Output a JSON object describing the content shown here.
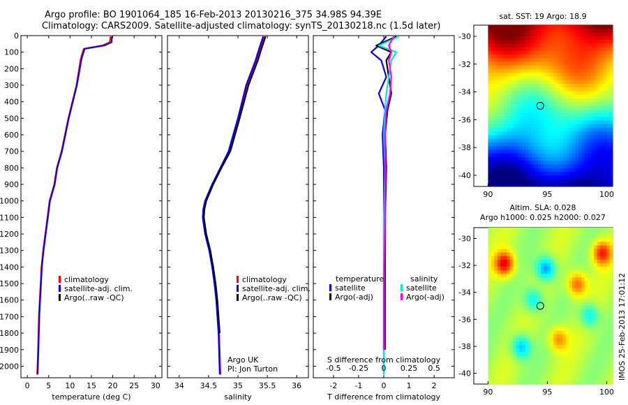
{
  "header": {
    "line1": "Argo profile: BO 1901064_185 16-Feb-2013 20130216_375 34.98S 94.39E",
    "line2": "Climatology: CARS2009. Satellite-adjusted climatology: synTS_20130218.nc (1.5d later)"
  },
  "side_text": "IMOS 25-Feb-2013 17:01:12",
  "colors": {
    "red": "#ff0000",
    "blue": "#0000ff",
    "black": "#000000",
    "cyan": "#00e5e5",
    "magenta": "#ff00ff"
  },
  "chart_data": [
    {
      "type": "line",
      "xlabel": "temperature (deg C)",
      "ylabel": "",
      "xlim": [
        -1.5,
        31.5
      ],
      "ylim": [
        2070,
        0
      ],
      "xticks": [
        "0",
        "5",
        "10",
        "15",
        "20",
        "25",
        "30"
      ],
      "yticks": [
        "0",
        "100",
        "200",
        "300",
        "400",
        "500",
        "600",
        "700",
        "800",
        "900",
        "1000",
        "1100",
        "1200",
        "1300",
        "1400",
        "1500",
        "1600",
        "1700",
        "1800",
        "1900",
        "2000"
      ],
      "legend": [
        "climatology",
        "satellite-adj. clim.",
        "Argo(..raw -QC)"
      ],
      "series": [
        {
          "name": "climatology",
          "color": "red",
          "x": [
            19.5,
            19.3,
            17.5,
            13.2,
            12.5,
            11.5,
            9.6,
            8.0,
            6.9,
            6.3,
            5.2,
            4.7,
            4.2,
            3.7,
            3.3,
            3.1,
            2.9,
            2.7,
            2.6,
            2.5,
            2.3
          ],
          "y": [
            5,
            40,
            60,
            80,
            140,
            300,
            500,
            700,
            800,
            900,
            1000,
            1100,
            1200,
            1300,
            1400,
            1500,
            1600,
            1700,
            1800,
            1900,
            2050
          ]
        },
        {
          "name": "satellite-adj. clim.",
          "color": "blue",
          "x": [
            19.8,
            19.7,
            18.0,
            13.4,
            12.7,
            11.6,
            9.7,
            8.1,
            7.0,
            6.4,
            5.3,
            4.8,
            4.3,
            3.8,
            3.4,
            3.2,
            3.0,
            2.8,
            2.7,
            2.6,
            2.4
          ],
          "y": [
            5,
            40,
            60,
            80,
            140,
            300,
            500,
            700,
            800,
            900,
            1000,
            1100,
            1200,
            1300,
            1400,
            1500,
            1600,
            1700,
            1800,
            1900,
            2050
          ]
        }
      ]
    },
    {
      "type": "line",
      "xlabel": "salinity",
      "xlim": [
        33.8,
        36.2
      ],
      "ylim": [
        2070,
        0
      ],
      "xticks": [
        "34",
        "34.5",
        "35",
        "35.5",
        "36"
      ],
      "legend": [
        "climatology",
        "satellite-adj. clim.",
        "Argo(..raw -QC)"
      ],
      "annotation": [
        "Argo UK",
        "PI: Jon Turton"
      ],
      "series": [
        {
          "name": "climatology",
          "color": "red",
          "x": [
            35.45,
            35.38,
            35.32,
            35.16,
            35.02,
            34.86,
            34.71,
            34.57,
            34.45,
            34.42,
            34.41,
            34.45,
            34.52,
            34.57,
            34.61,
            34.64,
            34.66,
            34.68,
            34.7
          ],
          "y": [
            5,
            80,
            150,
            300,
            500,
            700,
            800,
            900,
            1000,
            1050,
            1100,
            1200,
            1300,
            1400,
            1500,
            1600,
            1700,
            1800,
            2050
          ]
        },
        {
          "name": "satellite-adj. clim.",
          "color": "blue",
          "x": [
            35.43,
            35.36,
            35.3,
            35.14,
            35.0,
            34.84,
            34.7,
            34.56,
            34.44,
            34.41,
            34.4,
            34.44,
            34.51,
            34.56,
            34.6,
            34.63,
            34.65,
            34.67,
            34.69
          ],
          "y": [
            5,
            80,
            150,
            300,
            500,
            700,
            800,
            900,
            1000,
            1050,
            1100,
            1200,
            1300,
            1400,
            1500,
            1600,
            1700,
            1800,
            2050
          ]
        },
        {
          "name": "Argo",
          "color": "black",
          "x": [
            35.47,
            35.4,
            35.34,
            35.18,
            35.03,
            34.87,
            34.72,
            34.58,
            34.46,
            34.43,
            34.42,
            34.46,
            34.53,
            34.58,
            34.62,
            34.65,
            34.67,
            34.69
          ],
          "y": [
            5,
            80,
            150,
            300,
            500,
            700,
            800,
            900,
            1000,
            1050,
            1100,
            1200,
            1300,
            1400,
            1500,
            1600,
            1700,
            1800
          ]
        }
      ]
    },
    {
      "type": "line",
      "xlabel": "T difference from climatology",
      "toplabel": "S difference from climatology",
      "xlim": [
        -2.8,
        2.8
      ],
      "ylim": [
        2070,
        0
      ],
      "xticks": [
        "-2",
        "-1",
        "0",
        "1",
        "2"
      ],
      "top_ticks": [
        "-0.5",
        "-0.25",
        "0",
        "0.25",
        "0.5"
      ],
      "legend_titles": [
        "temperature",
        "salinity"
      ],
      "legend": [
        "satellite",
        "Argo(-adj)",
        "satellite",
        "Argo(-adj)"
      ],
      "series": [
        {
          "name": "satellite",
          "color": "blue",
          "x": [
            0.1,
            -0.2,
            -0.5,
            -0.1,
            0.1,
            -0.2,
            0.05,
            -0.05,
            0.0,
            0.0,
            0.0,
            0.0
          ],
          "y": [
            5,
            60,
            100,
            150,
            250,
            350,
            450,
            600,
            800,
            1100,
            1500,
            2050
          ]
        },
        {
          "name": "Argo(-adj)",
          "color": "black",
          "x": [
            0.5,
            -0.3,
            0.3,
            0.1,
            0.2,
            0.3,
            0.15,
            0.05,
            0.1,
            0.05,
            0.05,
            0.05
          ],
          "y": [
            5,
            60,
            100,
            150,
            250,
            350,
            450,
            600,
            800,
            1100,
            1500,
            1900
          ]
        },
        {
          "name": "satellite",
          "color": "cyan",
          "x": [
            0.6,
            -0.2,
            0.5,
            0.3,
            0.2,
            0.1,
            0.05,
            0.0,
            0.05,
            0.0,
            0.0,
            0.0
          ],
          "y": [
            5,
            60,
            100,
            150,
            250,
            350,
            450,
            600,
            800,
            1100,
            1500,
            2050
          ]
        },
        {
          "name": "Argo(-adj)",
          "color": "magenta",
          "x": [
            0.4,
            0.2,
            0.3,
            0.2,
            0.3,
            0.25,
            0.1,
            0.05,
            0.05,
            0.05,
            0.0,
            0.0
          ],
          "y": [
            5,
            60,
            100,
            150,
            250,
            350,
            450,
            600,
            800,
            1100,
            1500,
            1900
          ]
        }
      ]
    },
    {
      "type": "heatmap",
      "title": "sat. SST: 19 Argo: 18.9",
      "xlim": [
        88.8,
        100.5
      ],
      "ylim": [
        -40.8,
        -29.2
      ],
      "xticks": [
        "90",
        "95",
        "100"
      ],
      "yticks": [
        "-30",
        "-32",
        "-34",
        "-36",
        "-38",
        "-40"
      ],
      "marker": [
        94.4,
        -35.0
      ]
    },
    {
      "type": "heatmap",
      "title": "Altim. SLA: 0.028",
      "subtitle": "Argo h1000: 0.025 h2000: 0.027",
      "xlim": [
        88.8,
        100.5
      ],
      "ylim": [
        -40.8,
        -29.2
      ],
      "xticks": [
        "90",
        "95",
        "100"
      ],
      "yticks": [
        "-30",
        "-32",
        "-34",
        "-36",
        "-38",
        "-40"
      ],
      "marker": [
        94.4,
        -35.0
      ]
    }
  ]
}
